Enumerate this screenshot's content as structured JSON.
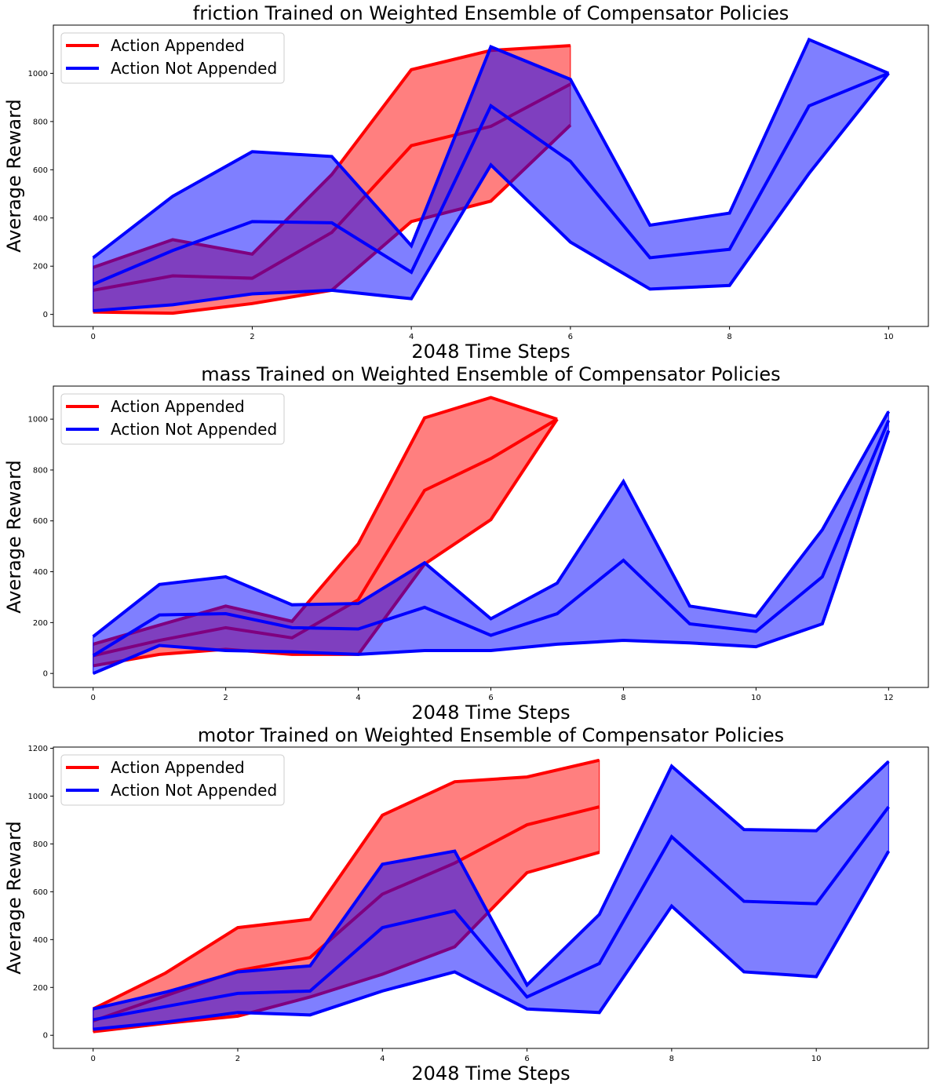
{
  "chart_data": [
    {
      "type": "line",
      "title": "friction Trained on Weighted Ensemble of Compensator Policies",
      "xlabel": "2048 Time Steps",
      "ylabel": "Average Reward",
      "xlim": [
        -0.5,
        10.5
      ],
      "ylim": [
        -50,
        1200
      ],
      "xticks": [
        0,
        2,
        4,
        6,
        8,
        10
      ],
      "yticks": [
        0,
        200,
        400,
        600,
        800,
        1000
      ],
      "legend_position": "top-left",
      "series": [
        {
          "name": "Action Appended",
          "color": "#ff0000",
          "x": [
            0,
            1,
            2,
            3,
            4,
            5,
            6
          ],
          "upper": [
            195,
            310,
            250,
            580,
            1015,
            1095,
            1115
          ],
          "mean": [
            100,
            160,
            150,
            340,
            700,
            780,
            955
          ],
          "lower": [
            10,
            5,
            45,
            100,
            385,
            470,
            785
          ]
        },
        {
          "name": "Action Not Appended",
          "color": "#0000ff",
          "x": [
            0,
            1,
            2,
            3,
            4,
            5,
            6,
            7,
            8,
            9,
            10
          ],
          "upper": [
            235,
            490,
            675,
            655,
            285,
            1110,
            975,
            370,
            420,
            1140,
            1000
          ],
          "mean": [
            125,
            265,
            385,
            380,
            175,
            865,
            635,
            235,
            270,
            865,
            1000
          ],
          "lower": [
            15,
            40,
            85,
            100,
            65,
            620,
            300,
            105,
            120,
            585,
            1000
          ]
        }
      ]
    },
    {
      "type": "line",
      "title": "mass Trained on Weighted Ensemble of Compensator Policies",
      "xlabel": "2048 Time Steps",
      "ylabel": "Average Reward",
      "xlim": [
        -0.6,
        12.6
      ],
      "ylim": [
        -55,
        1130
      ],
      "xticks": [
        0,
        2,
        4,
        6,
        8,
        10,
        12
      ],
      "yticks": [
        0,
        200,
        400,
        600,
        800,
        1000
      ],
      "legend_position": "top-left",
      "series": [
        {
          "name": "Action Appended",
          "color": "#ff0000",
          "x": [
            0,
            1,
            2,
            3,
            4,
            5,
            6,
            7
          ],
          "upper": [
            115,
            190,
            265,
            205,
            510,
            1005,
            1085,
            1000
          ],
          "mean": [
            70,
            130,
            180,
            140,
            290,
            720,
            845,
            1000
          ],
          "lower": [
            30,
            75,
            95,
            75,
            75,
            430,
            605,
            1000
          ]
        },
        {
          "name": "Action Not Appended",
          "color": "#0000ff",
          "x": [
            0,
            1,
            2,
            3,
            4,
            5,
            6,
            7,
            8,
            9,
            10,
            11,
            12
          ],
          "upper": [
            145,
            350,
            380,
            270,
            275,
            435,
            215,
            355,
            755,
            265,
            225,
            565,
            1030
          ],
          "mean": [
            70,
            230,
            235,
            180,
            175,
            260,
            150,
            235,
            445,
            195,
            165,
            380,
            995
          ],
          "lower": [
            0,
            110,
            90,
            85,
            75,
            90,
            90,
            115,
            130,
            120,
            105,
            195,
            955
          ]
        }
      ]
    },
    {
      "type": "line",
      "title": "motor Trained on Weighted Ensemble of Compensator Policies",
      "xlabel": "2048 Time Steps",
      "ylabel": "Average Reward",
      "xlim": [
        -0.55,
        11.55
      ],
      "ylim": [
        -55,
        1205
      ],
      "xticks": [
        0,
        2,
        4,
        6,
        8,
        10
      ],
      "yticks": [
        0,
        200,
        400,
        600,
        800,
        1000,
        1200
      ],
      "legend_position": "top-left",
      "series": [
        {
          "name": "Action Appended",
          "color": "#ff0000",
          "x": [
            0,
            1,
            2,
            3,
            4,
            5,
            6,
            7
          ],
          "upper": [
            110,
            260,
            450,
            485,
            920,
            1060,
            1080,
            1150
          ],
          "mean": [
            60,
            165,
            270,
            325,
            590,
            720,
            880,
            955
          ],
          "lower": [
            15,
            50,
            80,
            160,
            255,
            370,
            680,
            765
          ]
        },
        {
          "name": "Action Not Appended",
          "color": "#0000ff",
          "x": [
            0,
            1,
            2,
            3,
            4,
            5,
            6,
            7,
            8,
            9,
            10,
            11
          ],
          "upper": [
            110,
            180,
            265,
            290,
            715,
            770,
            210,
            505,
            1125,
            860,
            855,
            1145
          ],
          "mean": [
            65,
            120,
            175,
            185,
            450,
            520,
            160,
            300,
            830,
            560,
            550,
            955
          ],
          "lower": [
            25,
            55,
            95,
            85,
            185,
            265,
            110,
            95,
            540,
            265,
            245,
            770
          ]
        }
      ]
    }
  ]
}
